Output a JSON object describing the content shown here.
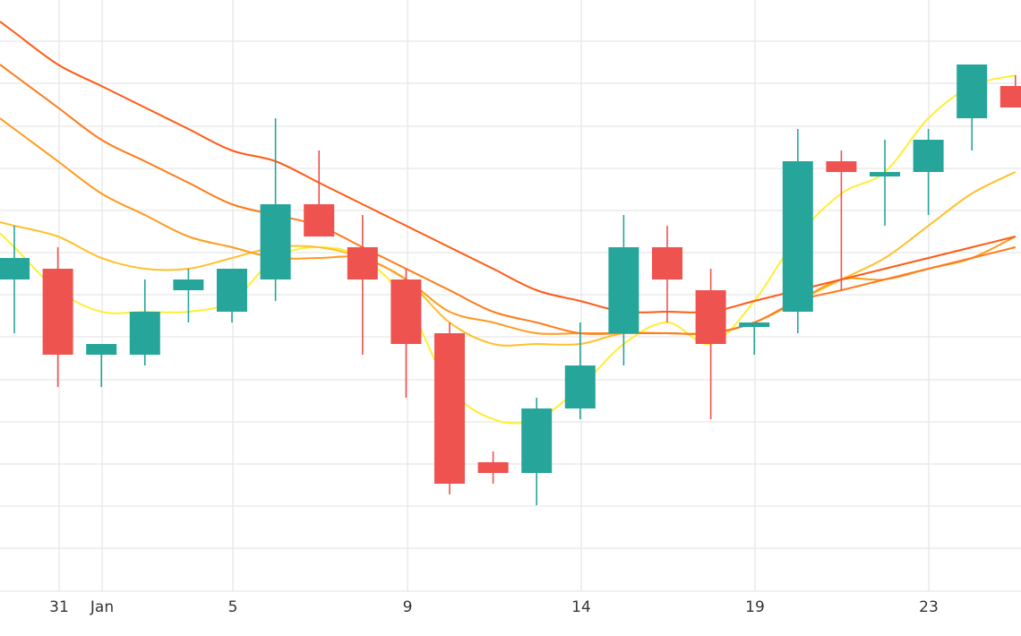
{
  "chart_data": {
    "type": "candlestick",
    "x_tick_labels": [
      "31",
      "Jan",
      "5",
      "9",
      "14",
      "19",
      "23"
    ],
    "candles": [
      {
        "day": 0,
        "open": 3.5,
        "high": 3.55,
        "low": 3.45,
        "close": 3.52
      },
      {
        "day": 1,
        "open": 3.51,
        "high": 3.53,
        "low": 3.4,
        "close": 3.43
      },
      {
        "day": 2,
        "open": 3.43,
        "high": 3.44,
        "low": 3.4,
        "close": 3.44
      },
      {
        "day": 3,
        "open": 3.43,
        "high": 3.5,
        "low": 3.42,
        "close": 3.47
      },
      {
        "day": 4,
        "open": 3.49,
        "high": 3.51,
        "low": 3.46,
        "close": 3.5
      },
      {
        "day": 5,
        "open": 3.47,
        "high": 3.51,
        "low": 3.46,
        "close": 3.51
      },
      {
        "day": 6,
        "open": 3.5,
        "high": 3.65,
        "low": 3.48,
        "close": 3.57
      },
      {
        "day": 7,
        "open": 3.57,
        "high": 3.62,
        "low": 3.54,
        "close": 3.54
      },
      {
        "day": 8,
        "open": 3.53,
        "high": 3.56,
        "low": 3.43,
        "close": 3.5
      },
      {
        "day": 9,
        "open": 3.5,
        "high": 3.51,
        "low": 3.39,
        "close": 3.44
      },
      {
        "day": 10,
        "open": 3.45,
        "high": 3.46,
        "low": 3.3,
        "close": 3.31
      },
      {
        "day": 11,
        "open": 3.33,
        "high": 3.34,
        "low": 3.31,
        "close": 3.32
      },
      {
        "day": 12,
        "open": 3.32,
        "high": 3.39,
        "low": 3.29,
        "close": 3.38
      },
      {
        "day": 13,
        "open": 3.38,
        "high": 3.46,
        "low": 3.37,
        "close": 3.42
      },
      {
        "day": 14,
        "open": 3.45,
        "high": 3.56,
        "low": 3.42,
        "close": 3.53
      },
      {
        "day": 15,
        "open": 3.53,
        "high": 3.55,
        "low": 3.46,
        "close": 3.5
      },
      {
        "day": 16,
        "open": 3.49,
        "high": 3.51,
        "low": 3.37,
        "close": 3.44
      },
      {
        "day": 17,
        "open": 3.46,
        "high": 3.46,
        "low": 3.43,
        "close": 3.46
      },
      {
        "day": 18,
        "open": 3.47,
        "high": 3.64,
        "low": 3.45,
        "close": 3.61
      },
      {
        "day": 19,
        "open": 3.61,
        "high": 3.62,
        "low": 3.49,
        "close": 3.6
      },
      {
        "day": 20,
        "open": 3.6,
        "high": 3.63,
        "low": 3.55,
        "close": 3.6
      },
      {
        "day": 21,
        "open": 3.6,
        "high": 3.64,
        "low": 3.56,
        "close": 3.63
      },
      {
        "day": 22,
        "open": 3.65,
        "high": 3.7,
        "low": 3.62,
        "close": 3.7
      },
      {
        "day": 23,
        "open": 3.68,
        "high": 3.69,
        "low": 3.66,
        "close": 3.66
      }
    ],
    "moving_averages": [
      {
        "color": "#ffee33",
        "values": [
          3.53,
          3.49,
          3.47,
          3.47,
          3.47,
          3.48,
          3.52,
          3.53,
          3.52,
          3.48,
          3.4,
          3.37,
          3.37,
          3.4,
          3.44,
          3.46,
          3.44,
          3.48,
          3.54,
          3.58,
          3.6,
          3.65,
          3.68,
          3.69
        ]
      },
      {
        "color": "#ffc02a",
        "values": [
          3.55,
          3.54,
          3.52,
          3.51,
          3.51,
          3.52,
          3.53,
          3.53,
          3.52,
          3.5,
          3.46,
          3.44,
          3.44,
          3.44,
          3.45,
          3.45,
          3.45,
          3.46,
          3.48,
          3.5,
          3.52,
          3.55,
          3.58,
          3.6
        ]
      },
      {
        "color": "#ff9a1f",
        "values": [
          3.64,
          3.61,
          3.58,
          3.56,
          3.54,
          3.53,
          3.52,
          3.52,
          3.52,
          3.5,
          3.47,
          3.46,
          3.45,
          3.45,
          3.45,
          3.45,
          3.45,
          3.46,
          3.48,
          3.5,
          3.5,
          3.51,
          3.52,
          3.54
        ]
      },
      {
        "color": "#ff7a1a",
        "values": [
          3.69,
          3.66,
          3.63,
          3.61,
          3.59,
          3.57,
          3.56,
          3.55,
          3.53,
          3.51,
          3.49,
          3.47,
          3.46,
          3.45,
          3.45,
          3.45,
          3.45,
          3.46,
          3.48,
          3.49,
          3.5,
          3.51,
          3.52,
          3.53
        ]
      },
      {
        "color": "#ff5a14",
        "values": [
          3.73,
          3.7,
          3.68,
          3.66,
          3.64,
          3.62,
          3.61,
          3.59,
          3.57,
          3.55,
          3.53,
          3.51,
          3.49,
          3.48,
          3.47,
          3.47,
          3.47,
          3.48,
          3.49,
          3.5,
          3.51,
          3.52,
          3.53,
          3.54
        ]
      }
    ],
    "colors": {
      "up": "#26a69a",
      "down": "#ef5350",
      "grid": "#e6e6e6"
    },
    "grid": true,
    "ylim": [
      3.21,
      3.76
    ]
  }
}
